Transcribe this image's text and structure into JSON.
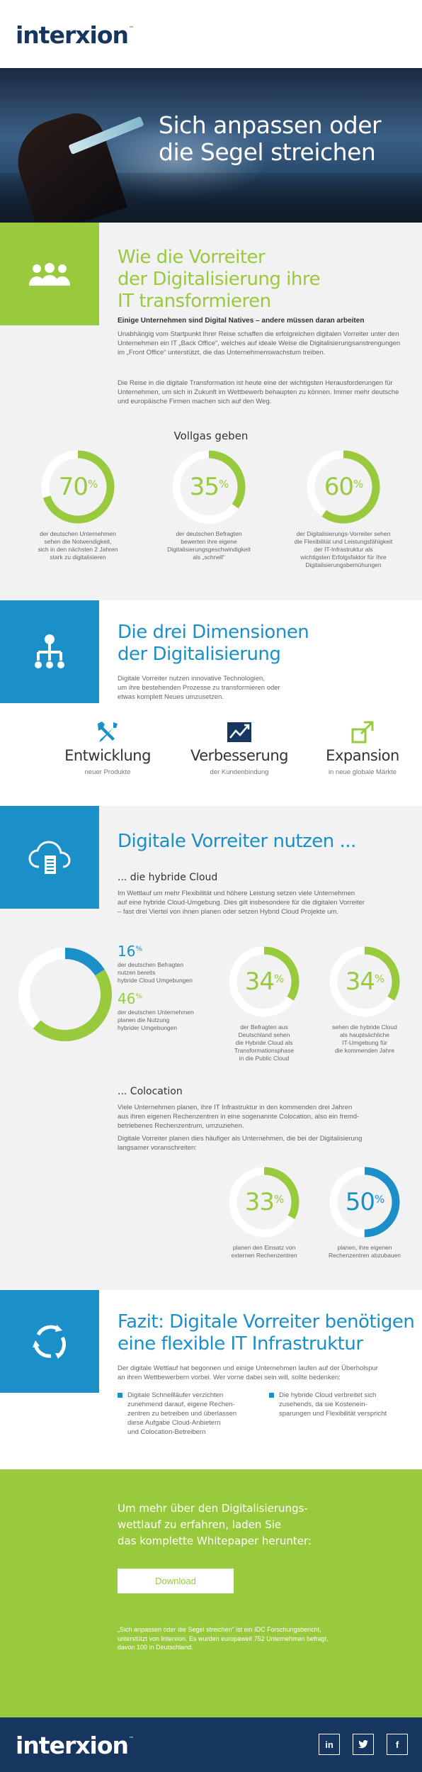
{
  "header": {
    "logo": "interxion",
    "logo_mark": "™"
  },
  "hero": {
    "title_line1": "Sich anpassen oder",
    "title_line2": "die Segel streichen"
  },
  "sec1": {
    "title": [
      "Wie die Vorreiter",
      "der Digitalisierung ihre",
      "IT transformieren"
    ],
    "subtitle": "Einige Unternehmen sind Digital Natives – andere müssen daran arbeiten",
    "para1": "Unabhängig vom Startpunkt Ihrer Reise schaffen die erfolgreichen digitalen Vorreiter unter den Unternehmen ein IT „Back Office“, welches auf ideale Weise die Digitalisierungsanstrengungen im „Front Office“ unterstützt, die das Unternehmenswachstum treiben.",
    "para2": "Die Reise in die digitale Transformation ist heute eine der wichtigsten Herausforderungen für Unternehmen, um sich in Zukunft im Wettbewerb behaupten zu können. Immer mehr deutsche und europäische Firmen machen sich auf den Weg.",
    "stats_title": "Vollgas geben",
    "stats": [
      {
        "value": "70",
        "unit": "%",
        "pct": 70,
        "caption": [
          "der deutschen Unternehmen",
          "sehen die Notwendigkeit,",
          "sich in den nächsten 2 Jahren",
          "stark zu digitalisieren"
        ]
      },
      {
        "value": "35",
        "unit": "%",
        "pct": 35,
        "caption": [
          "der deutschen Befragten",
          "bewerten ihre eigene",
          "Digitalisierungsgeschwindigkeit",
          "als „schnell“"
        ]
      },
      {
        "value": "60",
        "unit": "%",
        "pct": 60,
        "caption": [
          "der Digitalisierungs-Vorreiter sehen",
          "die Flexibilität und Leistungsfähigkeit",
          "der IT-Infrastruktur als",
          "wichtigsten Erfolgsfaktor für Ihre",
          "Digitalisierungsbemühungen"
        ]
      }
    ]
  },
  "sec2": {
    "title": [
      "Die drei Dimensionen",
      "der Digitalisierung"
    ],
    "para": [
      "Digitale Vorreiter nutzen innovative Technologien,",
      "um ihre bestehenden Prozesse zu transformieren oder",
      "etwas komplett Neues umzusetzen."
    ],
    "dims": [
      {
        "title": "Entwicklung",
        "sub": "neuer Produkte",
        "icon": "tools-icon"
      },
      {
        "title": "Verbesserung",
        "sub": "der Kundenbindung",
        "icon": "growth-chart-icon"
      },
      {
        "title": "Expansion",
        "sub": "in neue globale Märkte",
        "icon": "expand-icon"
      }
    ]
  },
  "sec3": {
    "title": "Digitale Vorreiter nutzen ...",
    "cloud_title": "... die hybride Cloud",
    "cloud_para": [
      "Im Wettlauf um mehr Flexibilität und höhere Leistung setzen viele Unternehmen",
      "auf eine hybride Cloud-Umgebung. Dies gilt insbesondere für die digitalen Vorreiter",
      "– fast drei Viertel von ihnen planen oder setzen Hybrid Cloud Projekte um."
    ],
    "donut": {
      "a": 16,
      "b": 46
    },
    "donut_labels": [
      {
        "value": "16",
        "unit": "%",
        "text": [
          "der deutschen Befragten",
          "nutzen bereits",
          "hybride Cloud Umgebungen"
        ]
      },
      {
        "value": "46",
        "unit": "%",
        "text": [
          "der deutschen Unternehmen",
          "planen die Nutzung",
          "hybrider Umgebungen"
        ]
      }
    ],
    "cloud_stats": [
      {
        "value": "34",
        "unit": "%",
        "pct": 34,
        "caption": [
          "der Befragten aus",
          "Deutschland sehen",
          "die Hybride Cloud als",
          "Transformationsphase",
          "in die Public Cloud"
        ]
      },
      {
        "value": "34",
        "unit": "%",
        "pct": 34,
        "caption": [
          "sehen die hybride Cloud",
          "als hauptsächliche",
          "IT-Umgebung für",
          "die kommenden Jahre"
        ]
      }
    ],
    "colo_title": "... Colocation",
    "colo_para1": [
      "Viele Unternehmen planen, ihre IT Infrastruktur in den kommenden drei Jahren",
      "aus ihren eigenen Rechenzentren in eine sogenannte Colocation, also ein fremd-",
      "betriebenes Rechenzentrum, umzuziehen."
    ],
    "colo_para2": [
      "Digitale Vorreiter planen dies häufiger als Unternehmen, die bei der Digitalisierung",
      "langsamer voranschreiten:"
    ],
    "colo_stats": [
      {
        "value": "33",
        "unit": "%",
        "pct": 33,
        "caption": [
          "planen den Einsatz von",
          "externen Rechenzentren"
        ]
      },
      {
        "value": "50",
        "unit": "%",
        "pct": 50,
        "caption": [
          "planen, ihre eigenen",
          "Rechenzentren abzubauen"
        ]
      }
    ]
  },
  "sec4": {
    "title": [
      "Fazit: Digitale Vorreiter benötigen",
      "eine flexible IT Infrastruktur"
    ],
    "para": [
      "Der digitale Wettlauf hat begonnen und einige Unternehmen laufen auf der Überholspur",
      "an ihren Wettbewerbern vorbei. Wer vorne dabei sein will, sollte bedenken:"
    ],
    "bullet1": [
      "Digitale Schnellläufer verzichten",
      "zunehmend darauf, eigene Rechen-",
      "zentren zu betreiben und überlassen",
      "diese Aufgabe Cloud-Anbietern",
      "und Colocation-Betreibern"
    ],
    "bullet2": [
      "Die hybride Cloud verbreitet sich",
      "zusehends, da sie Kostenein-",
      "sparungen und Flexibilität verspricht"
    ]
  },
  "sec5": {
    "cta": [
      "Um mehr über den Digitalisierungs-",
      "wettlauf zu erfahren, laden Sie",
      "das komplette Whitepaper herunter:"
    ],
    "button": "Download",
    "note": [
      "„Sich anpassen oder die Segel streichen“ ist ein IDC Forschungsbericht,",
      "unterstützt von Interxion. Es wurden europaweit 752 Unternehmen befragt,",
      "davon 100 in Deutschland."
    ]
  },
  "footer": {
    "logo": "interxion",
    "logo_mark": "™",
    "social": [
      "in",
      "t",
      "f"
    ]
  },
  "colors": {
    "green": "#99c93c",
    "blue": "#1a8fc8",
    "navy": "#17365f",
    "grey_bg": "#f2f2f2"
  }
}
